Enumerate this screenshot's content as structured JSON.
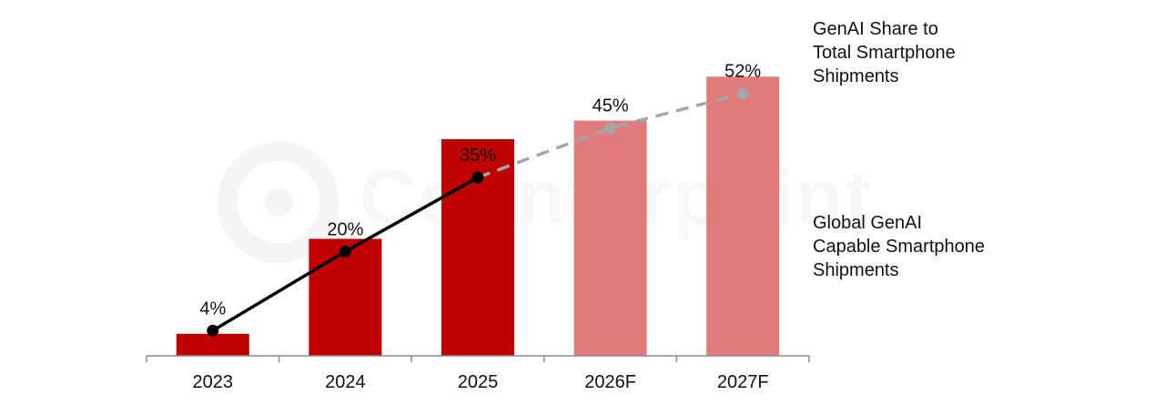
{
  "colors": {
    "bar_actual": "#c00000",
    "bar_forecast": "#e07b7b",
    "line_actual": "#000000",
    "line_forecast": "#a6a6a6",
    "axis": "#8c8c8c",
    "text": "#111111"
  },
  "watermark": {
    "text": "Counterpoint"
  },
  "legend": {
    "line_series": [
      "GenAI Share to",
      "Total Smartphone",
      "Shipments"
    ],
    "bar_series": [
      "Global GenAI",
      "Capable Smartphone",
      "Shipments"
    ]
  },
  "chart_data": {
    "type": "bar",
    "title": "",
    "xlabel": "",
    "ylabel": "",
    "categories": [
      "2023",
      "2024",
      "2025",
      "2026F",
      "2027F"
    ],
    "forecast_flags": [
      false,
      false,
      false,
      true,
      true
    ],
    "series": [
      {
        "name": "Global GenAI Capable Smartphone Shipments",
        "type": "bar",
        "values": [
          19,
          101,
          187,
          203,
          241
        ]
      },
      {
        "name": "GenAI Share to Total Smartphone Shipments",
        "type": "line",
        "values": [
          4,
          20,
          35,
          45,
          52
        ],
        "data_labels": [
          "4%",
          "20%",
          "35%",
          "45%",
          "52%"
        ]
      }
    ],
    "axis_ranges": {
      "bar": [
        0,
        260
      ],
      "line": [
        0,
        70
      ]
    },
    "grid": false,
    "legend_placement": "right"
  }
}
